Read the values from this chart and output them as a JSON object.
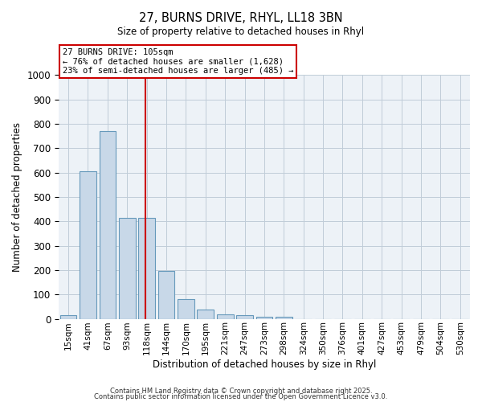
{
  "title_line1": "27, BURNS DRIVE, RHYL, LL18 3BN",
  "title_line2": "Size of property relative to detached houses in Rhyl",
  "xlabel": "Distribution of detached houses by size in Rhyl",
  "ylabel": "Number of detached properties",
  "bin_labels": [
    "15sqm",
    "41sqm",
    "67sqm",
    "93sqm",
    "118sqm",
    "144sqm",
    "170sqm",
    "195sqm",
    "221sqm",
    "247sqm",
    "273sqm",
    "298sqm",
    "324sqm",
    "350sqm",
    "376sqm",
    "401sqm",
    "427sqm",
    "453sqm",
    "479sqm",
    "504sqm",
    "530sqm"
  ],
  "bar_heights": [
    15,
    605,
    770,
    415,
    415,
    195,
    80,
    38,
    18,
    15,
    10,
    10,
    0,
    0,
    0,
    0,
    0,
    0,
    0,
    0,
    0
  ],
  "bar_color": "#c8d8e8",
  "bar_edge_color": "#6699bb",
  "vline_x_index": 3.95,
  "vline_color": "#cc0000",
  "annotation_text": "27 BURNS DRIVE: 105sqm\n← 76% of detached houses are smaller (1,628)\n23% of semi-detached houses are larger (485) →",
  "annotation_box_color": "#cc0000",
  "ylim": [
    0,
    1000
  ],
  "yticks": [
    0,
    100,
    200,
    300,
    400,
    500,
    600,
    700,
    800,
    900,
    1000
  ],
  "footer_line1": "Contains HM Land Registry data © Crown copyright and database right 2025.",
  "footer_line2": "Contains public sector information licensed under the Open Government Licence v3.0.",
  "background_color": "#edf2f7",
  "grid_color": "#c0ccd8"
}
